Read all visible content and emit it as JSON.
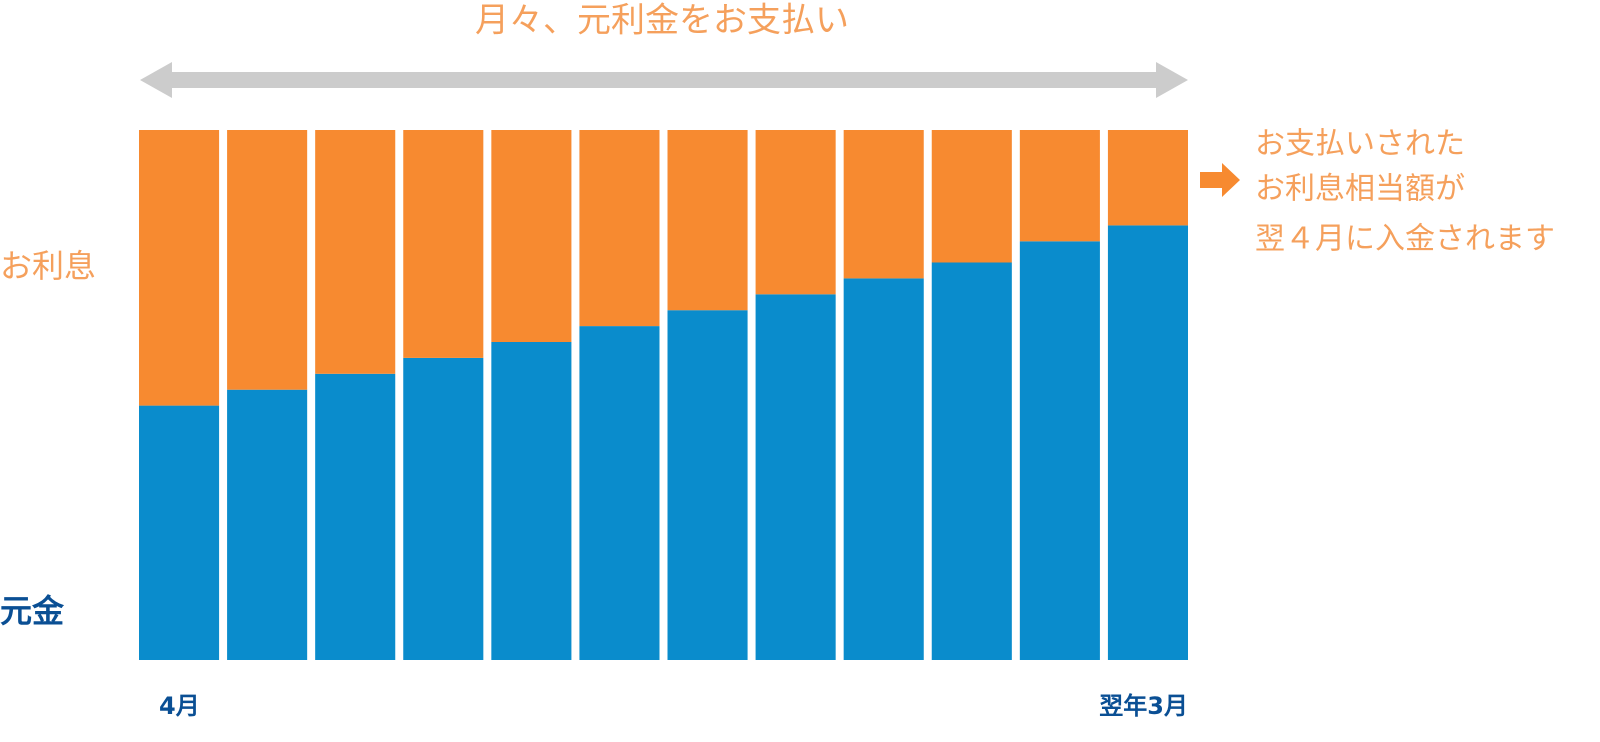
{
  "chart_data": {
    "type": "stacked-bar",
    "title": "月々、元利金をお支払い",
    "categories": [
      "4月",
      null,
      null,
      null,
      null,
      null,
      null,
      null,
      null,
      null,
      null,
      "翌年3月"
    ],
    "series": [
      {
        "name": "元金",
        "color": "#0a8ccc",
        "values": [
          48,
          51,
          54,
          57,
          60,
          63,
          66,
          69,
          72,
          75,
          79,
          82
        ]
      },
      {
        "name": "お利息",
        "color": "#f78a30",
        "values": [
          52,
          49,
          46,
          43,
          40,
          37,
          34,
          31,
          28,
          25,
          21,
          18
        ]
      }
    ],
    "ylim": [
      0,
      100
    ],
    "annotation": [
      "お支払いされた",
      "お利息相当額が",
      "翌４月に入金されます"
    ]
  }
}
